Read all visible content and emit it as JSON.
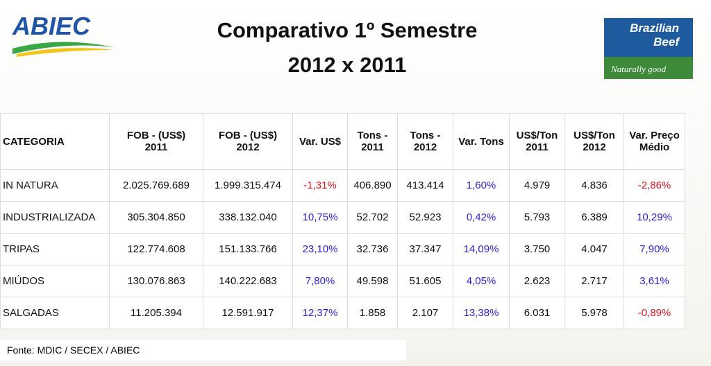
{
  "logos": {
    "left": "ABIEC",
    "right": [
      "Brazilian",
      "Beef"
    ],
    "tagline": "Naturally good"
  },
  "title": [
    "Comparativo 1º Semestre",
    "2012 x 2011"
  ],
  "table": {
    "header": [
      [
        "CATEGORIA"
      ],
      [
        "FOB  - (US$)",
        "2011"
      ],
      [
        "FOB - (US$)",
        "2012"
      ],
      [
        "Var. US$"
      ],
      [
        "Tons -",
        "2011"
      ],
      [
        "Tons -",
        "2012"
      ],
      [
        "Var. Tons"
      ],
      [
        "US$/Ton",
        "2011"
      ],
      [
        "US$/Ton",
        "2012"
      ],
      [
        "Var. Preço",
        "Médio"
      ]
    ],
    "rows": [
      [
        "IN NATURA",
        "2.025.769.689",
        "1.999.315.474",
        "-1,31%",
        "406.890",
        "413.414",
        "1,60%",
        "4.979",
        "4.836",
        "-2,86%"
      ],
      [
        "INDUSTRIALIZADA",
        "305.304.850",
        "338.132.040",
        "10,75%",
        "52.702",
        "52.923",
        "0,42%",
        "5.793",
        "6.389",
        "10,29%"
      ],
      [
        "TRIPAS",
        "122.774.608",
        "151.133.766",
        "23,10%",
        "32.736",
        "37.347",
        "14,09%",
        "3.750",
        "4.047",
        "7,90%"
      ],
      [
        "MIÚDOS",
        "130.076.863",
        "140.222.683",
        "7,80%",
        "49.598",
        "51.605",
        "4,05%",
        "2.623",
        "2.717",
        "3,61%"
      ],
      [
        "SALGADAS",
        "11.205.394",
        "12.591.917",
        "12,37%",
        "1.858",
        "2.107",
        "13,38%",
        "6.031",
        "5.978",
        "-0,89%"
      ]
    ]
  },
  "footer": "Fonte: MDIC / SECEX / ABIEC"
}
